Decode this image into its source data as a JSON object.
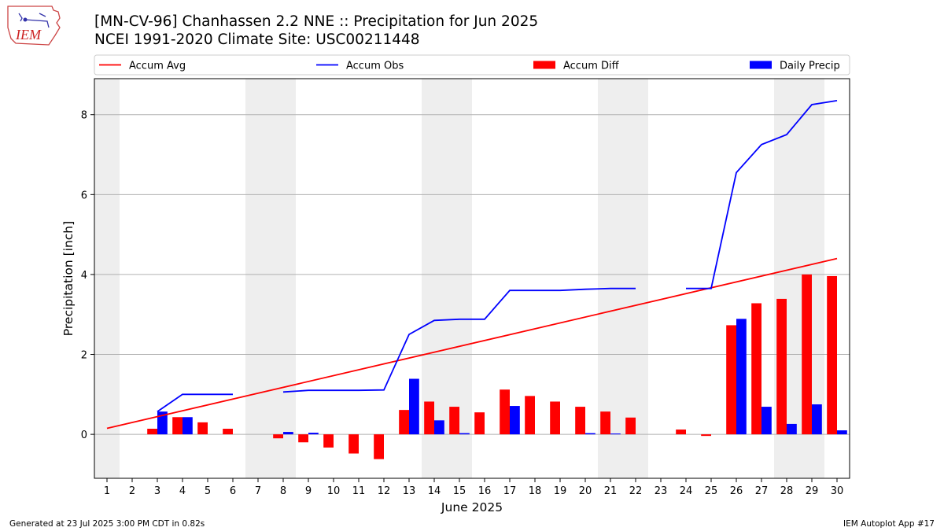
{
  "logo_text": "IEM",
  "title_line1": "[MN-CV-96] Chanhassen 2.2 NNE :: Precipitation for Jun 2025",
  "title_line2": "NCEI 1991-2020 Climate Site: USC00211448",
  "footer_left": "Generated at 23 Jul 2025 3:00 PM CDT in 0.82s",
  "footer_right": "IEM Autoplot App #17",
  "chart_data": {
    "type": "bar",
    "xlabel": "June 2025",
    "ylabel": "Precipitation [inch]",
    "xlim": [
      0.5,
      30.5
    ],
    "ylim": [
      -1.1,
      8.9
    ],
    "x_ticks": [
      1,
      2,
      3,
      4,
      5,
      6,
      7,
      8,
      9,
      10,
      11,
      12,
      13,
      14,
      15,
      16,
      17,
      18,
      19,
      20,
      21,
      22,
      23,
      24,
      25,
      26,
      27,
      28,
      29,
      30
    ],
    "y_ticks": [
      0,
      2,
      4,
      6,
      8
    ],
    "grid": "horizontal",
    "legend_position": "top",
    "weekend_shading": [
      [
        0.5,
        1.5
      ],
      [
        6.5,
        8.5
      ],
      [
        13.5,
        15.5
      ],
      [
        20.5,
        22.5
      ],
      [
        27.5,
        29.5
      ]
    ],
    "series": [
      {
        "name": "Accum Avg",
        "kind": "line",
        "color": "#ff0000",
        "x": [
          1,
          30
        ],
        "values": [
          0.15,
          4.4
        ]
      },
      {
        "name": "Accum Obs",
        "kind": "line",
        "color": "#0000ff",
        "x": [
          3,
          4,
          5,
          6,
          null,
          8,
          9,
          10,
          11,
          12,
          13,
          14,
          15,
          16,
          17,
          18,
          19,
          20,
          21,
          22,
          null,
          24,
          25,
          26,
          27,
          28,
          29,
          30
        ],
        "values": [
          0.57,
          1.0,
          1.0,
          1.0,
          null,
          1.06,
          1.1,
          1.1,
          1.1,
          1.11,
          2.5,
          2.85,
          2.88,
          2.88,
          3.6,
          3.6,
          3.6,
          3.63,
          3.65,
          3.65,
          null,
          3.65,
          3.65,
          6.55,
          7.25,
          7.5,
          8.25,
          8.35
        ]
      },
      {
        "name": "Accum Diff",
        "kind": "bar",
        "color": "#ff0000",
        "x": [
          3,
          4,
          5,
          6,
          8,
          9,
          10,
          11,
          12,
          13,
          14,
          15,
          16,
          17,
          18,
          19,
          20,
          21,
          22,
          24,
          25,
          26,
          27,
          28,
          29,
          30
        ],
        "values": [
          0.14,
          0.43,
          0.3,
          0.14,
          -0.1,
          -0.2,
          -0.33,
          -0.48,
          -0.62,
          0.61,
          0.82,
          0.69,
          0.55,
          1.12,
          0.96,
          0.82,
          0.69,
          0.57,
          0.42,
          0.12,
          -0.04,
          2.73,
          3.28,
          3.39,
          4.0,
          3.96
        ]
      },
      {
        "name": "Daily Precip",
        "kind": "bar",
        "color": "#0000ff",
        "x": [
          3,
          4,
          8,
          9,
          13,
          14,
          15,
          17,
          20,
          21,
          26,
          27,
          28,
          29,
          30
        ],
        "values": [
          0.57,
          0.43,
          0.06,
          0.04,
          1.39,
          0.35,
          0.03,
          0.71,
          0.03,
          0.02,
          2.89,
          0.69,
          0.26,
          0.75,
          0.1
        ]
      }
    ]
  }
}
